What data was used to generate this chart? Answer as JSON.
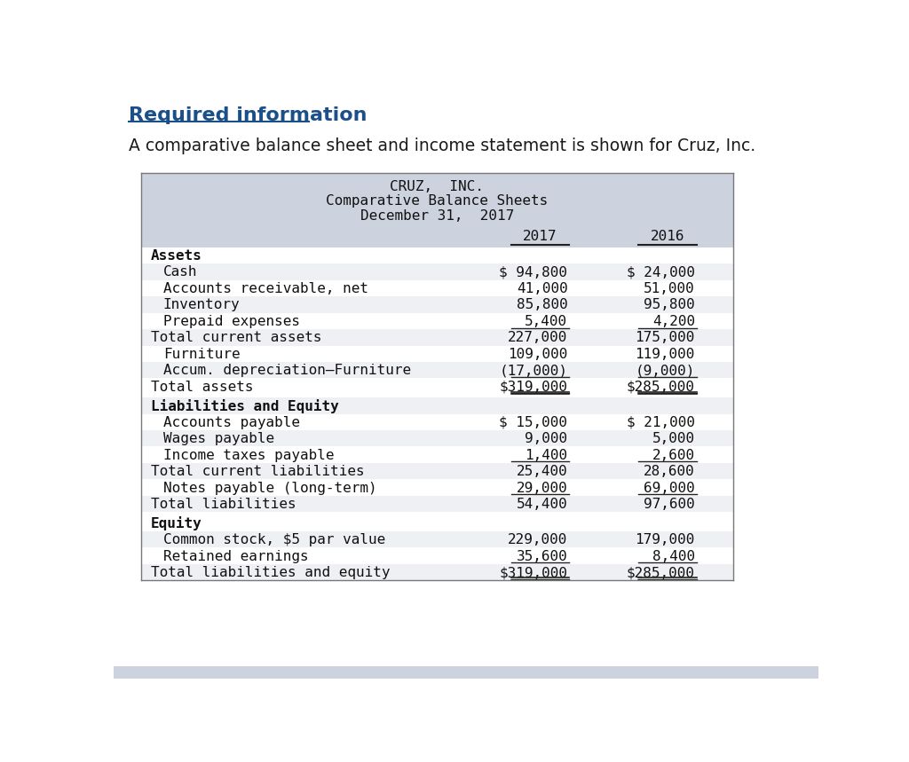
{
  "page_bg": "#ffffff",
  "header_title": "Required information",
  "header_title_color": "#1b4f8a",
  "header_subtitle": "A comparative balance sheet and income statement is shown for Cruz, Inc.",
  "table_header_bg": "#cdd3de",
  "row_alt_bg": "#eef0f4",
  "row_bg": "#ffffff",
  "table_border_color": "#888888",
  "table_title_lines": [
    "CRUZ,  INC.",
    "Comparative Balance Sheets",
    "December 31,  2017"
  ],
  "rows": [
    {
      "label": "Assets",
      "val2017": "",
      "val2016": "",
      "bold": true,
      "indent": false,
      "bottom_border_vals": false,
      "double_underline": false,
      "extra_top_space": false
    },
    {
      "label": "Cash",
      "val2017": "$ 94,800",
      "val2016": "$ 24,000",
      "bold": false,
      "indent": true,
      "bottom_border_vals": false,
      "double_underline": false,
      "extra_top_space": false
    },
    {
      "label": "Accounts receivable, net",
      "val2017": "41,000",
      "val2016": "51,000",
      "bold": false,
      "indent": true,
      "bottom_border_vals": false,
      "double_underline": false,
      "extra_top_space": false
    },
    {
      "label": "Inventory",
      "val2017": "85,800",
      "val2016": "95,800",
      "bold": false,
      "indent": true,
      "bottom_border_vals": false,
      "double_underline": false,
      "extra_top_space": false
    },
    {
      "label": "Prepaid expenses",
      "val2017": "5,400",
      "val2016": "4,200",
      "bold": false,
      "indent": true,
      "bottom_border_vals": true,
      "double_underline": false,
      "extra_top_space": false
    },
    {
      "label": "Total current assets",
      "val2017": "227,000",
      "val2016": "175,000",
      "bold": false,
      "indent": false,
      "bottom_border_vals": false,
      "double_underline": false,
      "extra_top_space": false
    },
    {
      "label": "Furniture",
      "val2017": "109,000",
      "val2016": "119,000",
      "bold": false,
      "indent": true,
      "bottom_border_vals": false,
      "double_underline": false,
      "extra_top_space": false
    },
    {
      "label": "Accum. depreciation–Furniture",
      "val2017": "(17,000)",
      "val2016": "(9,000)",
      "bold": false,
      "indent": true,
      "bottom_border_vals": true,
      "double_underline": false,
      "extra_top_space": false
    },
    {
      "label": "Total assets",
      "val2017": "$319,000",
      "val2016": "$285,000",
      "bold": false,
      "indent": false,
      "bottom_border_vals": true,
      "double_underline": true,
      "extra_top_space": false
    },
    {
      "label": "Liabilities and Equity",
      "val2017": "",
      "val2016": "",
      "bold": true,
      "indent": false,
      "bottom_border_vals": false,
      "double_underline": false,
      "extra_top_space": true
    },
    {
      "label": "Accounts payable",
      "val2017": "$ 15,000",
      "val2016": "$ 21,000",
      "bold": false,
      "indent": true,
      "bottom_border_vals": false,
      "double_underline": false,
      "extra_top_space": false
    },
    {
      "label": "Wages payable",
      "val2017": "9,000",
      "val2016": "5,000",
      "bold": false,
      "indent": true,
      "bottom_border_vals": false,
      "double_underline": false,
      "extra_top_space": false
    },
    {
      "label": "Income taxes payable",
      "val2017": "1,400",
      "val2016": "2,600",
      "bold": false,
      "indent": true,
      "bottom_border_vals": true,
      "double_underline": false,
      "extra_top_space": false
    },
    {
      "label": "Total current liabilities",
      "val2017": "25,400",
      "val2016": "28,600",
      "bold": false,
      "indent": false,
      "bottom_border_vals": false,
      "double_underline": false,
      "extra_top_space": false
    },
    {
      "label": "Notes payable (long-term)",
      "val2017": "29,000",
      "val2016": "69,000",
      "bold": false,
      "indent": true,
      "bottom_border_vals": true,
      "double_underline": false,
      "extra_top_space": false
    },
    {
      "label": "Total liabilities",
      "val2017": "54,400",
      "val2016": "97,600",
      "bold": false,
      "indent": false,
      "bottom_border_vals": false,
      "double_underline": false,
      "extra_top_space": false
    },
    {
      "label": "Equity",
      "val2017": "",
      "val2016": "",
      "bold": true,
      "indent": false,
      "bottom_border_vals": false,
      "double_underline": false,
      "extra_top_space": true
    },
    {
      "label": "Common stock, $5 par value",
      "val2017": "229,000",
      "val2016": "179,000",
      "bold": false,
      "indent": true,
      "bottom_border_vals": false,
      "double_underline": false,
      "extra_top_space": false
    },
    {
      "label": "Retained earnings",
      "val2017": "35,600",
      "val2016": "8,400",
      "bold": false,
      "indent": true,
      "bottom_border_vals": true,
      "double_underline": false,
      "extra_top_space": false
    },
    {
      "label": "Total liabilities and equity",
      "val2017": "$319,000",
      "val2016": "$285,000",
      "bold": false,
      "indent": false,
      "bottom_border_vals": true,
      "double_underline": true,
      "extra_top_space": false
    }
  ],
  "mono_font": "DejaVu Sans Mono",
  "sans_font": "DejaVu Sans",
  "font_size": 11.5,
  "title_font_size": 11.5,
  "header_font_size": 16,
  "subtitle_font_size": 13.5
}
